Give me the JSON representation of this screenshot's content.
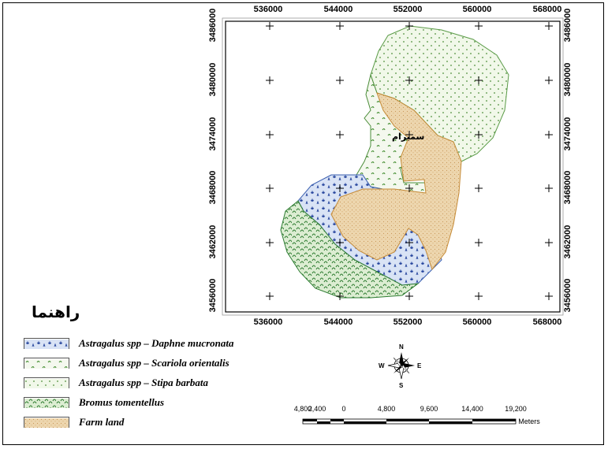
{
  "map": {
    "x_ticks": [
      "536000",
      "544000",
      "552000",
      "560000",
      "568000"
    ],
    "y_ticks": [
      "3486000",
      "3480000",
      "3474000",
      "3468000",
      "3462000",
      "3456000"
    ],
    "town_label": "سمیرام"
  },
  "legend": {
    "title": "راهنما",
    "items": [
      {
        "label": "Astragalus spp – Daphne mucronata",
        "pattern": "daphne",
        "color": "#3a5fb0"
      },
      {
        "label": "Astragalus spp – Scariola orientalis",
        "pattern": "scariola",
        "color": "#4e9a3a"
      },
      {
        "label": "Astragalus spp – Stipa barbata",
        "pattern": "stipa",
        "color": "#6aa84f"
      },
      {
        "label": "Bromus tomentellus",
        "pattern": "bromus",
        "color": "#2e7d32"
      },
      {
        "label": "Farm land",
        "pattern": "farm",
        "color": "#e6c79a"
      }
    ]
  },
  "north_arrow": {
    "n": "N",
    "s": "S",
    "e": "E",
    "w": "W"
  },
  "scale_bar": {
    "labels": [
      "4,800",
      "2,400",
      "0",
      "4,800",
      "9,600",
      "14,400",
      "19,200"
    ],
    "unit": "Meters"
  }
}
